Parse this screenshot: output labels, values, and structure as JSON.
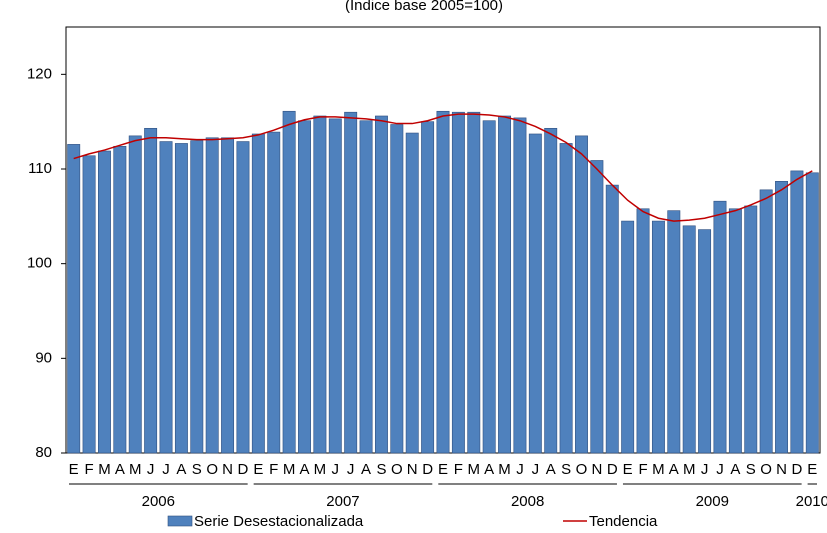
{
  "chart_data": {
    "type": "bar",
    "title": "(Índice base 2005=100)",
    "categories": [
      "E",
      "F",
      "M",
      "A",
      "M",
      "J",
      "J",
      "A",
      "S",
      "O",
      "N",
      "D",
      "E",
      "F",
      "M",
      "A",
      "M",
      "J",
      "J",
      "A",
      "S",
      "O",
      "N",
      "D",
      "E",
      "F",
      "M",
      "A",
      "M",
      "J",
      "J",
      "A",
      "S",
      "O",
      "N",
      "D",
      "E",
      "F",
      "M",
      "A",
      "M",
      "J",
      "J",
      "A",
      "S",
      "O",
      "N",
      "D",
      "E"
    ],
    "years": [
      "2006",
      "2007",
      "2008",
      "2009",
      "2010"
    ],
    "series": [
      {
        "name": "Serie Desestacionalizada",
        "type": "bar",
        "color": "#4f81bd",
        "values": [
          112.6,
          111.4,
          111.9,
          112.4,
          113.5,
          114.3,
          112.9,
          112.7,
          113.0,
          113.3,
          113.3,
          112.9,
          113.7,
          113.9,
          116.1,
          115.1,
          115.6,
          115.3,
          116.0,
          115.1,
          115.6,
          114.7,
          113.8,
          115.0,
          116.1,
          116.0,
          116.0,
          115.1,
          115.6,
          115.4,
          113.7,
          114.3,
          112.7,
          113.5,
          110.9,
          108.3,
          104.5,
          105.8,
          104.5,
          105.6,
          104.0,
          103.6,
          106.6,
          105.8,
          106.1,
          107.8,
          108.7,
          109.8,
          109.6
        ]
      },
      {
        "name": "Tendencia",
        "type": "line",
        "color": "#c00000",
        "values": [
          111.1,
          111.6,
          112.0,
          112.5,
          113.0,
          113.3,
          113.3,
          113.2,
          113.1,
          113.1,
          113.2,
          113.3,
          113.6,
          114.1,
          114.7,
          115.2,
          115.5,
          115.5,
          115.4,
          115.3,
          115.1,
          114.8,
          114.8,
          115.1,
          115.6,
          115.8,
          115.8,
          115.7,
          115.5,
          115.1,
          114.5,
          113.7,
          112.8,
          111.6,
          110.0,
          108.3,
          106.7,
          105.5,
          104.8,
          104.5,
          104.6,
          104.8,
          105.2,
          105.6,
          106.2,
          106.9,
          107.8,
          108.9,
          109.8
        ]
      }
    ],
    "ylim": [
      80,
      125
    ],
    "yticks": [
      80,
      90,
      100,
      110,
      120
    ],
    "grid": false
  }
}
